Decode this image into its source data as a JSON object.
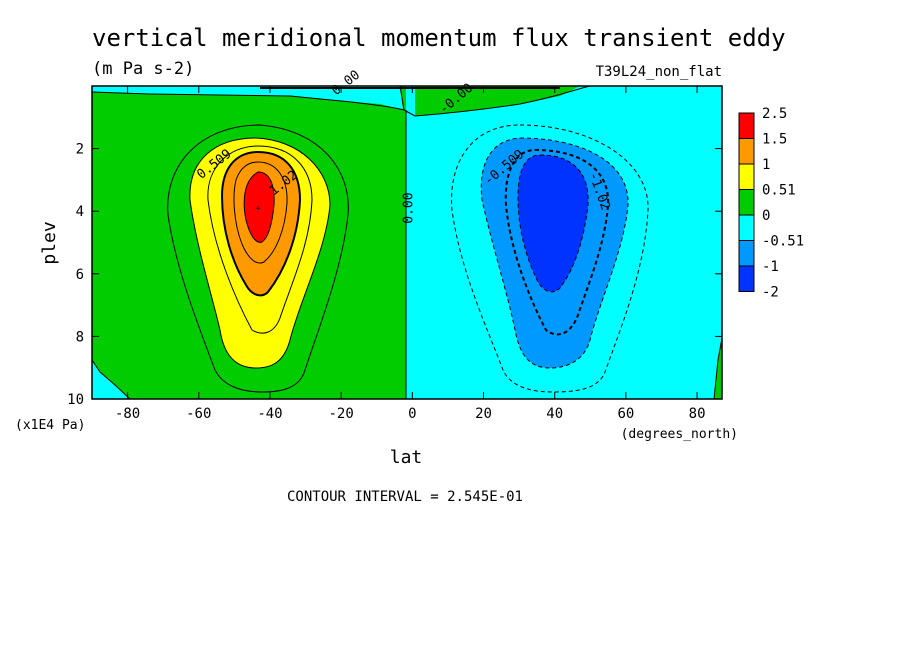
{
  "chart_data": {
    "type": "contour",
    "title": "vertical meridional momentum flux transient eddy",
    "units": "(m Pa s-2)",
    "run_label": "T39L24_non_flat",
    "xlabel": "lat",
    "xunit": "(degrees_north)",
    "ylabel": "plev",
    "yunit": "(x1E4 Pa)",
    "xlim": [
      -90,
      87
    ],
    "ylim": [
      0,
      10
    ],
    "y_inverted": true,
    "x_ticks": [
      "-80",
      "-60",
      "-40",
      "-20",
      "0",
      "20",
      "40",
      "60",
      "80"
    ],
    "x_tick_values": [
      -80,
      -60,
      -40,
      -20,
      0,
      20,
      40,
      60,
      80
    ],
    "y_ticks": [
      "2",
      "4",
      "6",
      "8",
      "10"
    ],
    "y_tick_values": [
      2,
      4,
      6,
      8,
      10
    ],
    "contour_interval_text": "CONTOUR INTERVAL = 2.545E-01",
    "contour_labels": [
      {
        "text": "0.509",
        "lat": -55.0,
        "plev": 2.6
      },
      {
        "text": "1.02",
        "lat": -35.5,
        "plev": 3.2
      },
      {
        "text": "0.00",
        "lat": 0.0,
        "plev": 3.9
      },
      {
        "text": "0.00",
        "lat": -18.0,
        "plev": 0.0
      },
      {
        "text": "-0.00",
        "lat": 13.0,
        "plev": 0.5
      },
      {
        "text": "-0.509",
        "lat": 26.5,
        "plev": 2.7
      },
      {
        "text": "-1.02",
        "lat": 51.5,
        "plev": 3.4
      }
    ],
    "colorbar": {
      "levels": [
        "2.5",
        "1.5",
        "1",
        "0.51",
        "0",
        "-0.51",
        "-1",
        "-2"
      ],
      "colors": [
        "#ff0000",
        "#ff9900",
        "#ffff00",
        "#00cc00",
        "#00ffff",
        "#0099ff",
        "#0033ff"
      ]
    },
    "features": [
      {
        "name": "southern maximum",
        "lat": -40,
        "plev": 4.0,
        "value_range": [
          1.5,
          2.5
        ]
      },
      {
        "name": "northern minimum",
        "lat": 40,
        "plev": 4.0,
        "value_range": [
          -2,
          -1
        ]
      }
    ],
    "colors": {
      "positive_weak": "#00cc00",
      "negative_weak": "#00ffff"
    }
  }
}
